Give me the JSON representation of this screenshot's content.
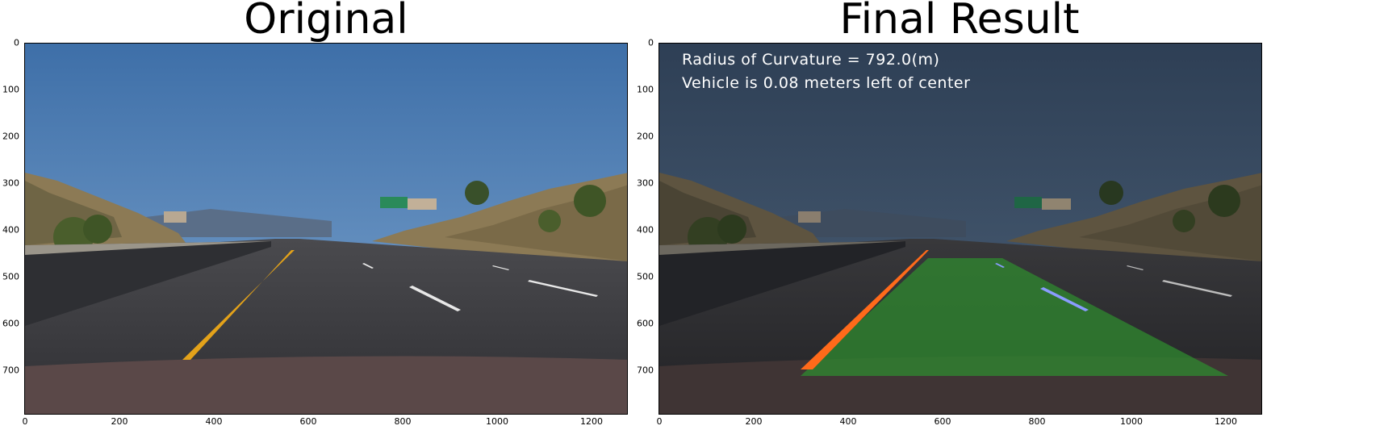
{
  "panels": [
    {
      "title": "Original"
    },
    {
      "title": "Final Result"
    }
  ],
  "axes": {
    "y_ticks": [
      "0",
      "100",
      "200",
      "300",
      "400",
      "500",
      "600",
      "700"
    ],
    "x_ticks": [
      "0",
      "200",
      "400",
      "600",
      "800",
      "1000",
      "1200"
    ]
  },
  "overlay": {
    "curvature": "Radius of Curvature = 792.0(m)",
    "offset": "Vehicle is 0.08 meters left of center"
  },
  "colors": {
    "sky": "#4a7bb3",
    "sky_overlay": "#33475c",
    "road": "#3b3b3e",
    "lane_fill": "#2f8a2f",
    "left_line": "#e3a21a",
    "left_line_overlay": "#ff6a1a",
    "right_line_overlay": "#8a9cff",
    "hills": "#8c7a55"
  }
}
